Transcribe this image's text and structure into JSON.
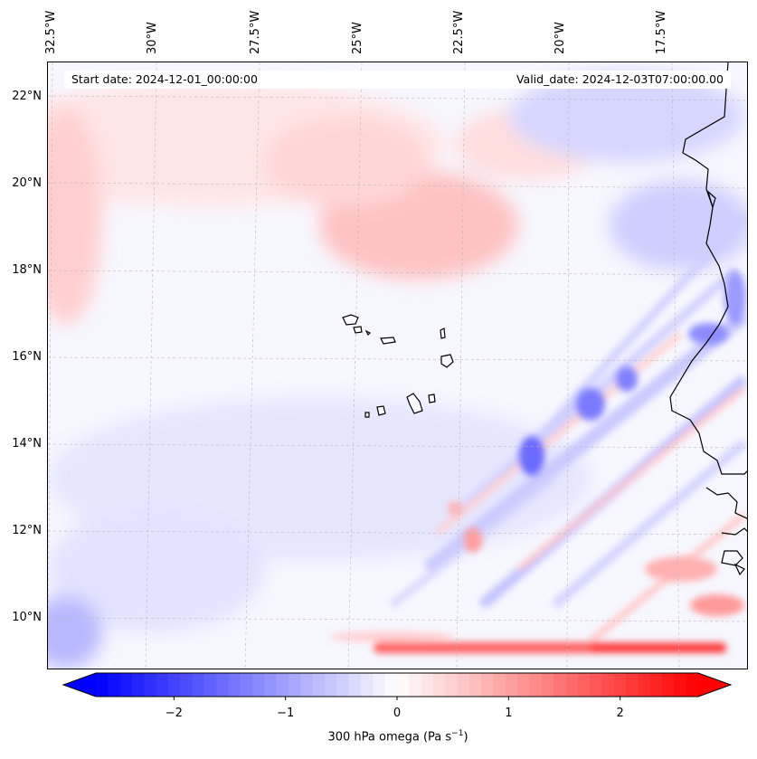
{
  "map": {
    "start_date": "Start date: 2024-12-01_00:00:00",
    "valid_date": "Valid_date: 2024-12-03T07:00:00.00",
    "lon_labels": [
      "32.5°W",
      "30°W",
      "27.5°W",
      "25°W",
      "22.5°W",
      "20°W",
      "17.5°W"
    ],
    "lat_labels": [
      "22°N",
      "20°N",
      "18°N",
      "16°N",
      "14°N",
      "12°N",
      "10°N"
    ],
    "gridlines": "dashed",
    "coastline_color": "#000000"
  },
  "colorbar": {
    "ticks": [
      "−2",
      "−1",
      "0",
      "1",
      "2"
    ],
    "label": "300 hPa omega (Pa s",
    "label_exponent": "−1",
    "label_close": ")",
    "min": -2.7,
    "max": 2.7,
    "colormap": "bwr",
    "low_color": "#0000ff",
    "mid_color": "#ffffff",
    "high_color": "#ff0000"
  }
}
